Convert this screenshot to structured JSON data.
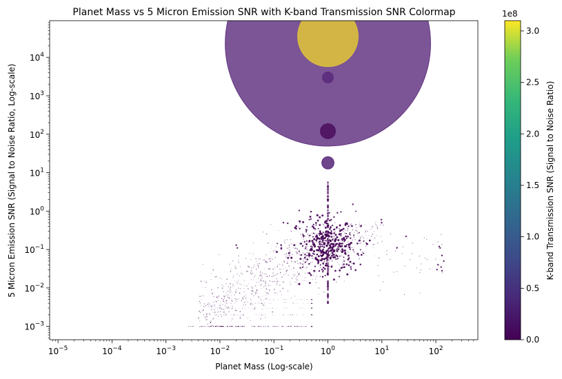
{
  "chart_data": {
    "type": "scatter",
    "title": "Planet Mass vs 5 Micron Emission SNR with K-band Transmission SNR Colormap",
    "xlabel": "Planet Mass (Log-scale)",
    "ylabel": "5 Micron Emission SNR (Signal to Noise Ratio, Log-scale)",
    "xscale": "log",
    "yscale": "log",
    "xlim": [
      7e-06,
      600
    ],
    "ylim": [
      0.00045,
      90000
    ],
    "xticks": [
      {
        "value": 1e-05,
        "base": "10",
        "exp": "−5"
      },
      {
        "value": 0.0001,
        "base": "10",
        "exp": "−4"
      },
      {
        "value": 0.001,
        "base": "10",
        "exp": "−3"
      },
      {
        "value": 0.01,
        "base": "10",
        "exp": "−2"
      },
      {
        "value": 0.1,
        "base": "10",
        "exp": "−1"
      },
      {
        "value": 1,
        "base": "10",
        "exp": "0"
      },
      {
        "value": 10,
        "base": "10",
        "exp": "1"
      },
      {
        "value": 100,
        "base": "10",
        "exp": "2"
      }
    ],
    "yticks": [
      {
        "value": 0.001,
        "base": "10",
        "exp": "−3"
      },
      {
        "value": 0.01,
        "base": "10",
        "exp": "−2"
      },
      {
        "value": 0.1,
        "base": "10",
        "exp": "−1"
      },
      {
        "value": 1,
        "base": "10",
        "exp": "0"
      },
      {
        "value": 10,
        "base": "10",
        "exp": "1"
      },
      {
        "value": 100,
        "base": "10",
        "exp": "2"
      },
      {
        "value": 1000,
        "base": "10",
        "exp": "3"
      },
      {
        "value": 10000,
        "base": "10",
        "exp": "4"
      }
    ],
    "colorbar": {
      "label": "K-band Transmission SNR (Signal to Noise Ratio)",
      "multiplier": "1e8",
      "range": [
        0,
        3.1
      ],
      "ticks": [
        "0.0",
        "0.5",
        "1.0",
        "1.5",
        "2.0",
        "2.5",
        "3.0"
      ],
      "colormap": "viridis"
    },
    "notable_points": [
      {
        "x": 1.0,
        "y": 23000,
        "color_value": 0.05,
        "size": "huge"
      },
      {
        "x": 1.0,
        "y": 35000,
        "color_value": 3.05,
        "size": "large"
      },
      {
        "x": 1.0,
        "y": 3000,
        "color_value": 0.05,
        "size": "small"
      },
      {
        "x": 1.0,
        "y": 120,
        "color_value": 0.0,
        "size": "small"
      },
      {
        "x": 1.0,
        "y": 18,
        "color_value": 0.02,
        "size": "small"
      }
    ],
    "background_points_description": "dense cloud of ~2000 tiny dark-purple points, clustered near mass 1 and SNR 0.1, spreading down-left toward mass 0.001-0.1 and SNR 0.001"
  }
}
